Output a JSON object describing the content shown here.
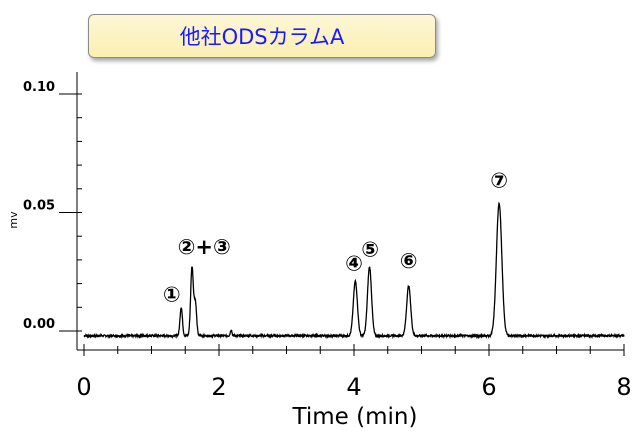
{
  "chart_data": {
    "type": "line",
    "title": "他社ODSカラムA",
    "xlabel": "Time (min)",
    "ylabel": "mv",
    "xlim": [
      0,
      8
    ],
    "ylim": [
      -0.003,
      0.11
    ],
    "x_ticks": [
      0,
      2,
      4,
      6,
      8
    ],
    "x_tick_labels": [
      "0",
      "2",
      "4",
      "6",
      "8"
    ],
    "y_ticks": [
      0.0,
      0.05,
      0.1
    ],
    "y_tick_labels": [
      "0.00",
      "0.05",
      "0.10"
    ],
    "baseline": -0.002,
    "grid": false,
    "legend": "none",
    "line_color": "#000000",
    "peaks": [
      {
        "x": 1.44,
        "height": 0.012,
        "width": 0.018
      },
      {
        "x": 1.6,
        "height": 0.029,
        "width": 0.02
      },
      {
        "x": 1.65,
        "height": 0.014,
        "width": 0.018
      },
      {
        "x": 2.18,
        "height": 0.0025,
        "width": 0.012
      },
      {
        "x": 4.02,
        "height": 0.023,
        "width": 0.03
      },
      {
        "x": 4.23,
        "height": 0.029,
        "width": 0.03
      },
      {
        "x": 4.81,
        "height": 0.021,
        "width": 0.03
      },
      {
        "x": 6.15,
        "height": 0.056,
        "width": 0.04
      }
    ],
    "annotations": [
      {
        "text": "①",
        "x": 1.3,
        "y": 0.0125
      },
      {
        "text": "②+③",
        "x": 1.78,
        "y": 0.0325
      },
      {
        "text": "④",
        "x": 4.0,
        "y": 0.0255
      },
      {
        "text": "⑤",
        "x": 4.24,
        "y": 0.0315
      },
      {
        "text": "⑥",
        "x": 4.81,
        "y": 0.0265
      },
      {
        "text": "⑦",
        "x": 6.15,
        "y": 0.0605
      }
    ]
  }
}
